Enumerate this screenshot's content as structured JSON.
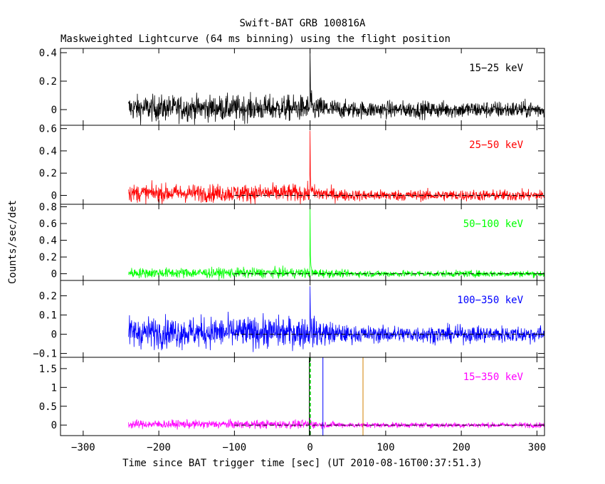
{
  "chart_data": {
    "type": "line",
    "title": "Swift-BAT GRB 100816A",
    "subtitle": "Maskweighted Lightcurve (64 ms binning) using the flight position",
    "xlabel": "Time since BAT trigger time [sec] (UT 2010-08-16T00:37:51.3)",
    "ylabel": "Counts/sec/det",
    "xlim": [
      -330,
      310
    ],
    "x_ticks": [
      "−300",
      "−200",
      "−100",
      "0",
      "100",
      "200",
      "300"
    ],
    "x_tick_values": [
      -300,
      -200,
      -100,
      0,
      100,
      200,
      300
    ],
    "data_start": -240,
    "burst_time": 0,
    "baseline_from": -100,
    "grid": false,
    "panels": [
      {
        "name": "15−25 keV",
        "color": "#000000",
        "ylim": [
          -0.11,
          0.43
        ],
        "y_ticks": [
          "0",
          "0.2",
          "0.4"
        ],
        "y_tick_values": [
          0,
          0.2,
          0.4
        ],
        "noise_pre": 0.045,
        "noise_post": 0.03,
        "pre_level": 0.01,
        "post_level": 0.0,
        "peak": 0.42
      },
      {
        "name": "25−50 keV",
        "color": "#ff0000",
        "ylim": [
          -0.08,
          0.63
        ],
        "y_ticks": [
          "0",
          "0.2",
          "0.4",
          "0.6"
        ],
        "y_tick_values": [
          0,
          0.2,
          0.4,
          0.6
        ],
        "noise_pre": 0.04,
        "noise_post": 0.025,
        "pre_level": 0.02,
        "post_level": 0.0,
        "peak": 0.58
      },
      {
        "name": "50−100 keV",
        "color": "#00ff00",
        "ylim": [
          -0.08,
          0.83
        ],
        "y_ticks": [
          "0",
          "0.2",
          "0.4",
          "0.6",
          "0.8"
        ],
        "y_tick_values": [
          0,
          0.2,
          0.4,
          0.6,
          0.8
        ],
        "noise_pre": 0.03,
        "noise_post": 0.02,
        "pre_level": 0.01,
        "post_level": 0.0,
        "peak": 0.82
      },
      {
        "name": "100−350 keV",
        "color": "#0000ff",
        "ylim": [
          -0.12,
          0.28
        ],
        "y_ticks": [
          "−0.1",
          "0",
          "0.1",
          "0.2"
        ],
        "y_tick_values": [
          -0.1,
          0,
          0.1,
          0.2
        ],
        "noise_pre": 0.04,
        "noise_post": 0.022,
        "pre_level": 0.01,
        "post_level": 0.0,
        "peak": 0.25
      },
      {
        "name": "15−350 keV",
        "color": "#ff00ff",
        "ylim": [
          -0.28,
          1.8
        ],
        "y_ticks": [
          "0",
          "0.5",
          "1",
          "1.5"
        ],
        "y_tick_values": [
          0,
          0.5,
          1,
          1.5
        ],
        "noise_pre": 0.055,
        "noise_post": 0.035,
        "pre_level": 0.02,
        "post_level": 0.0,
        "peak": 0.2
      }
    ],
    "markers": [
      {
        "x": -1,
        "color": "#000000",
        "dashed": false
      },
      {
        "x": 0,
        "color": "#00c000",
        "dashed": true
      },
      {
        "x": 17,
        "color": "#0000ff",
        "dashed": false
      },
      {
        "x": 70,
        "color": "#d08000",
        "dashed": false
      }
    ]
  }
}
